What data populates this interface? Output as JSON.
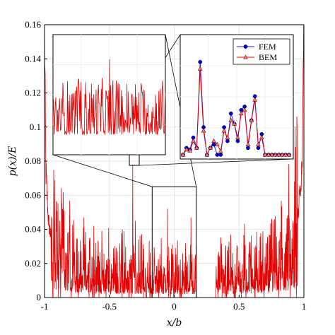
{
  "chart_data": {
    "type": "line",
    "title": "",
    "xlabel": "x/b",
    "ylabel": "p(x)/E",
    "xlim": [
      -1,
      1
    ],
    "ylim": [
      0,
      0.16
    ],
    "x_ticks": [
      -1,
      -0.5,
      0,
      0.5,
      1
    ],
    "x_tick_labels": [
      "-1",
      "-0.5",
      "0",
      "0.5",
      "1"
    ],
    "y_ticks": [
      0,
      0.02,
      0.04,
      0.06,
      0.08,
      0.1,
      0.12,
      0.14,
      0.16
    ],
    "y_tick_labels": [
      "0",
      "0.02",
      "0.04",
      "0.06",
      "0.08",
      "0.1",
      "0.12",
      "0.14",
      "0.16"
    ],
    "grid": true,
    "legend_position": "top-right of right inset",
    "series": [
      {
        "name": "FEM",
        "color": "#1a1aff",
        "marker": "circle"
      },
      {
        "name": "BEM",
        "color": "#e00000",
        "marker": "triangle"
      }
    ],
    "contact_gap": [
      0.17,
      0.32
    ],
    "main_profile": {
      "x": [
        -1,
        -0.99,
        -0.97,
        -0.95,
        -0.92,
        -0.9,
        -0.85,
        -0.8,
        -0.7,
        -0.6,
        -0.5,
        -0.4,
        -0.3,
        -0.2,
        -0.1,
        0,
        0.1,
        0.17,
        0.32,
        0.4,
        0.5,
        0.6,
        0.7,
        0.8,
        0.85,
        0.9,
        0.93,
        0.95,
        0.97,
        0.99,
        1
      ],
      "y": [
        0.16,
        0.075,
        0.045,
        0.035,
        0.03,
        0.028,
        0.024,
        0.02,
        0.016,
        0.015,
        0.014,
        0.014,
        0.014,
        0.013,
        0.014,
        0.013,
        0.012,
        0.011,
        0.011,
        0.013,
        0.015,
        0.015,
        0.017,
        0.021,
        0.024,
        0.03,
        0.035,
        0.045,
        0.06,
        0.09,
        0.16
      ]
    },
    "spikes": [
      {
        "x": -0.62,
        "y": 0.042
      },
      {
        "x": -0.4,
        "y": 0.04
      },
      {
        "x": -0.32,
        "y": 0.078
      },
      {
        "x": -0.3,
        "y": 0.045
      },
      {
        "x": -0.05,
        "y": 0.052
      },
      {
        "x": 0.13,
        "y": 0.047
      }
    ],
    "zoom_box_main": {
      "x": [
        -0.17,
        0.17
      ],
      "y": [
        0,
        0.065
      ]
    },
    "zoom_box_left_inset": {
      "x": [
        -0.33,
        -0.25
      ],
      "y": [
        0.0825,
        0.117
      ]
    },
    "right_inset": {
      "FEM": [
        0.0,
        0.02,
        0.015,
        0.05,
        0.02,
        0.27,
        0.08,
        0.0,
        0.02,
        0.03,
        0.0,
        0.0,
        0.08,
        0.04,
        0.12,
        0.09,
        0.04,
        0.13,
        0.14,
        0.02,
        0.1,
        0.17,
        0.02,
        0.06,
        0.0,
        0.0,
        0.0,
        0.0,
        0.0,
        0.0,
        0.0,
        0.0
      ],
      "BEM": [
        0.0,
        0.015,
        0.012,
        0.04,
        0.02,
        0.25,
        0.07,
        0.0,
        0.02,
        0.04,
        0.03,
        0.01,
        0.07,
        0.05,
        0.1,
        0.09,
        0.05,
        0.12,
        0.13,
        0.03,
        0.1,
        0.16,
        0.03,
        0.05,
        0.0,
        0.0,
        0.0,
        0.0,
        0.0,
        0.0,
        0.0,
        0.0
      ]
    }
  }
}
